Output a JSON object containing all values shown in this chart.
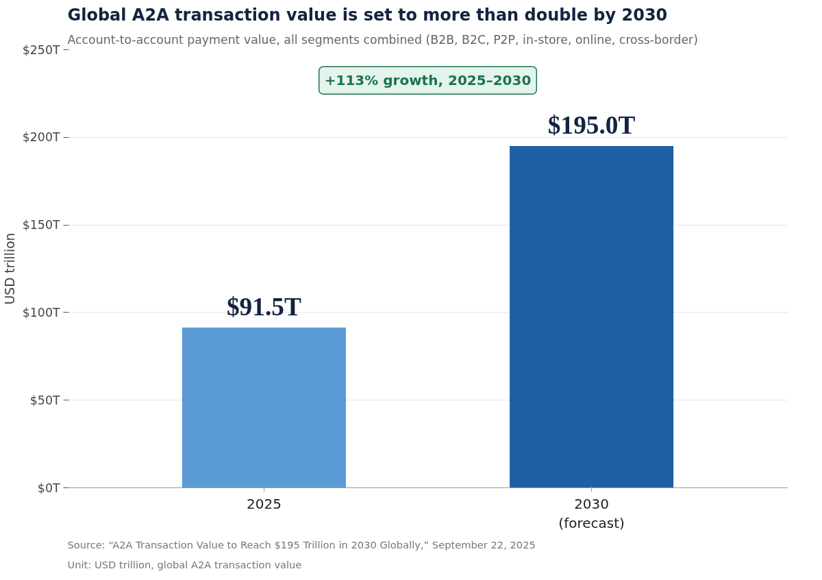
{
  "chart_data": {
    "type": "bar",
    "title": "Global A2A transaction value is set to more than double by 2030",
    "subtitle": "Account-to-account payment value, all segments combined (B2B, B2C, P2P, in-store, online, cross-border)",
    "ylabel": "USD trillion",
    "categories": [
      "2025",
      "2030\n(forecast)"
    ],
    "values": [
      91.5,
      195.0
    ],
    "colors": [
      "#5b9bd5",
      "#1f5fa6"
    ],
    "value_labels": [
      "$91.5T",
      "$195.0T"
    ],
    "ylim": [
      0,
      250
    ],
    "yticks": [
      {
        "value": 0,
        "label": "$0T"
      },
      {
        "value": 50,
        "label": "$50T"
      },
      {
        "value": 100,
        "label": "$100T"
      },
      {
        "value": 150,
        "label": "$150T"
      },
      {
        "value": 200,
        "label": "$200T"
      },
      {
        "value": 250,
        "label": "$250T"
      }
    ],
    "grid": "y",
    "annotations": [
      "+113% growth, 2025–2030",
      "Source: “A2A Transaction Value to Reach $195 Trillion in 2030 Globally,” September 22, 2025",
      "Unit: USD trillion, global A2A transaction value"
    ]
  }
}
